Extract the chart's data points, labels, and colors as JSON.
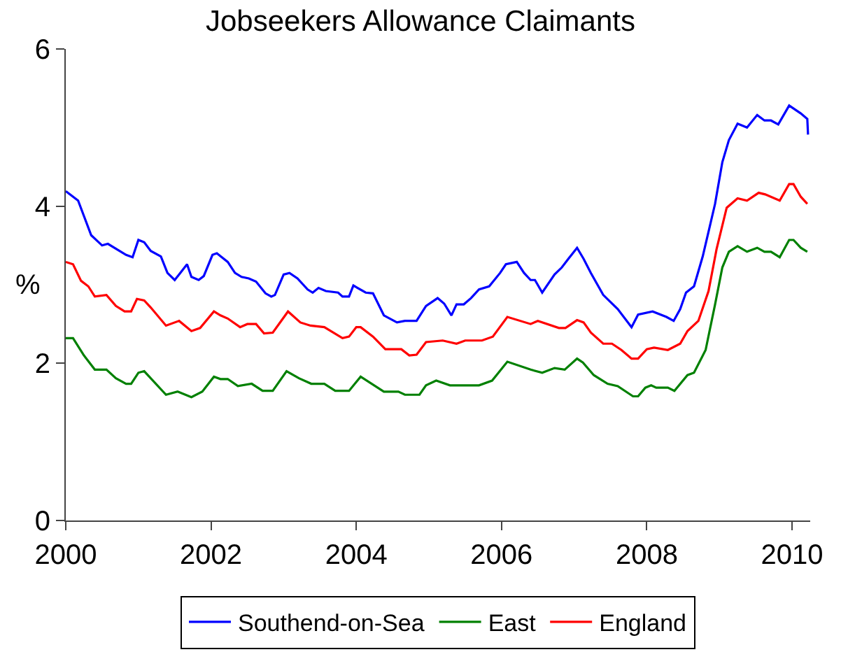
{
  "chart_data": {
    "type": "line",
    "title": "Jobseekers Allowance Claimants",
    "ylabel": "%",
    "xlim": [
      2000,
      2010.25
    ],
    "xticks": [
      2000,
      2002,
      2004,
      2006,
      2008,
      2010
    ],
    "ylim": [
      0,
      6
    ],
    "yticks": [
      0,
      2,
      4,
      6
    ],
    "legend": "bottom",
    "marker": "none",
    "line_style": "solid",
    "series": [
      {
        "name": "Southend-on-Sea",
        "color": "#0000ff",
        "x": [
          2000.0,
          2000.17,
          2000.35,
          2000.5,
          2000.58,
          2000.83,
          2000.92,
          2001.0,
          2001.08,
          2001.17,
          2001.31,
          2001.4,
          2001.5,
          2001.67,
          2001.73,
          2001.83,
          2001.9,
          2002.02,
          2002.08,
          2002.23,
          2002.33,
          2002.42,
          2002.52,
          2002.62,
          2002.75,
          2002.83,
          2002.88,
          2003.0,
          2003.08,
          2003.19,
          2003.33,
          2003.4,
          2003.48,
          2003.58,
          2003.75,
          2003.81,
          2003.9,
          2003.96,
          2004.13,
          2004.23,
          2004.38,
          2004.56,
          2004.67,
          2004.83,
          2004.96,
          2005.12,
          2005.21,
          2005.31,
          2005.38,
          2005.48,
          2005.58,
          2005.69,
          2005.83,
          2005.98,
          2006.06,
          2006.21,
          2006.31,
          2006.4,
          2006.46,
          2006.56,
          2006.73,
          2006.83,
          2006.92,
          2007.04,
          2007.13,
          2007.23,
          2007.4,
          2007.6,
          2007.79,
          2007.88,
          2008.08,
          2008.27,
          2008.37,
          2008.46,
          2008.54,
          2008.65,
          2008.77,
          2008.94,
          2009.04,
          2009.13,
          2009.25,
          2009.38,
          2009.52,
          2009.62,
          2009.71,
          2009.81,
          2009.96,
          2010.12,
          2010.21,
          2010.22
        ],
        "values": [
          4.19,
          4.07,
          3.63,
          3.5,
          3.52,
          3.38,
          3.35,
          3.57,
          3.54,
          3.43,
          3.36,
          3.15,
          3.06,
          3.26,
          3.1,
          3.06,
          3.11,
          3.38,
          3.4,
          3.29,
          3.15,
          3.1,
          3.08,
          3.04,
          2.89,
          2.85,
          2.87,
          3.13,
          3.15,
          3.08,
          2.94,
          2.9,
          2.96,
          2.92,
          2.9,
          2.85,
          2.85,
          2.99,
          2.9,
          2.89,
          2.61,
          2.52,
          2.54,
          2.54,
          2.73,
          2.83,
          2.76,
          2.61,
          2.75,
          2.75,
          2.83,
          2.94,
          2.98,
          3.15,
          3.26,
          3.29,
          3.15,
          3.06,
          3.06,
          2.9,
          3.13,
          3.22,
          3.33,
          3.47,
          3.33,
          3.15,
          2.87,
          2.69,
          2.46,
          2.62,
          2.66,
          2.59,
          2.54,
          2.69,
          2.9,
          2.98,
          3.36,
          4.03,
          4.56,
          4.84,
          5.05,
          5.0,
          5.16,
          5.09,
          5.09,
          5.04,
          5.28,
          5.18,
          5.11,
          4.91
        ]
      },
      {
        "name": "East",
        "color": "#008000",
        "x": [
          2000.0,
          2000.1,
          2000.25,
          2000.4,
          2000.56,
          2000.69,
          2000.83,
          2000.9,
          2001.0,
          2001.08,
          2001.38,
          2001.54,
          2001.73,
          2001.88,
          2002.04,
          2002.13,
          2002.23,
          2002.37,
          2002.56,
          2002.71,
          2002.85,
          2003.04,
          2003.21,
          2003.38,
          2003.56,
          2003.71,
          2003.9,
          2004.06,
          2004.38,
          2004.58,
          2004.67,
          2004.87,
          2004.96,
          2005.1,
          2005.29,
          2005.69,
          2005.87,
          2006.08,
          2006.4,
          2006.56,
          2006.73,
          2006.87,
          2007.04,
          2007.12,
          2007.27,
          2007.46,
          2007.6,
          2007.81,
          2007.88,
          2007.98,
          2008.06,
          2008.13,
          2008.29,
          2008.38,
          2008.56,
          2008.65,
          2008.81,
          2008.94,
          2009.04,
          2009.13,
          2009.25,
          2009.38,
          2009.52,
          2009.62,
          2009.71,
          2009.83,
          2009.96,
          2010.02,
          2010.12,
          2010.21
        ],
        "values": [
          2.32,
          2.32,
          2.1,
          1.92,
          1.92,
          1.81,
          1.74,
          1.74,
          1.88,
          1.9,
          1.6,
          1.64,
          1.57,
          1.64,
          1.83,
          1.8,
          1.8,
          1.71,
          1.74,
          1.65,
          1.65,
          1.9,
          1.81,
          1.74,
          1.74,
          1.65,
          1.65,
          1.83,
          1.64,
          1.64,
          1.6,
          1.6,
          1.72,
          1.78,
          1.72,
          1.72,
          1.78,
          2.02,
          1.92,
          1.88,
          1.94,
          1.92,
          2.06,
          2.01,
          1.85,
          1.74,
          1.71,
          1.58,
          1.58,
          1.69,
          1.72,
          1.69,
          1.69,
          1.65,
          1.85,
          1.88,
          2.17,
          2.75,
          3.22,
          3.42,
          3.49,
          3.42,
          3.47,
          3.42,
          3.42,
          3.35,
          3.57,
          3.57,
          3.47,
          3.42
        ]
      },
      {
        "name": "England",
        "color": "#ff0000",
        "x": [
          2000.0,
          2000.1,
          2000.21,
          2000.31,
          2000.4,
          2000.56,
          2000.69,
          2000.81,
          2000.9,
          2000.98,
          2001.08,
          2001.17,
          2001.38,
          2001.56,
          2001.73,
          2001.85,
          2002.04,
          2002.13,
          2002.23,
          2002.4,
          2002.5,
          2002.62,
          2002.73,
          2002.85,
          2003.06,
          2003.23,
          2003.37,
          2003.56,
          2003.81,
          2003.9,
          2004.0,
          2004.06,
          2004.23,
          2004.4,
          2004.62,
          2004.73,
          2004.83,
          2004.96,
          2005.19,
          2005.38,
          2005.5,
          2005.73,
          2005.88,
          2006.08,
          2006.4,
          2006.5,
          2006.79,
          2006.88,
          2007.04,
          2007.13,
          2007.23,
          2007.4,
          2007.52,
          2007.65,
          2007.79,
          2007.88,
          2008.0,
          2008.1,
          2008.29,
          2008.46,
          2008.56,
          2008.71,
          2008.85,
          2008.96,
          2009.1,
          2009.25,
          2009.38,
          2009.54,
          2009.63,
          2009.83,
          2009.96,
          2010.02,
          2010.12,
          2010.21
        ],
        "values": [
          3.29,
          3.26,
          3.05,
          2.98,
          2.85,
          2.87,
          2.73,
          2.66,
          2.66,
          2.82,
          2.8,
          2.71,
          2.48,
          2.54,
          2.41,
          2.45,
          2.66,
          2.61,
          2.57,
          2.46,
          2.5,
          2.5,
          2.38,
          2.39,
          2.66,
          2.52,
          2.48,
          2.46,
          2.32,
          2.34,
          2.46,
          2.46,
          2.34,
          2.18,
          2.18,
          2.1,
          2.11,
          2.27,
          2.29,
          2.25,
          2.29,
          2.29,
          2.34,
          2.59,
          2.5,
          2.54,
          2.45,
          2.45,
          2.55,
          2.52,
          2.39,
          2.25,
          2.25,
          2.17,
          2.06,
          2.06,
          2.18,
          2.2,
          2.17,
          2.25,
          2.41,
          2.54,
          2.92,
          3.45,
          3.98,
          4.1,
          4.07,
          4.17,
          4.15,
          4.07,
          4.28,
          4.28,
          4.12,
          4.03
        ]
      }
    ]
  }
}
